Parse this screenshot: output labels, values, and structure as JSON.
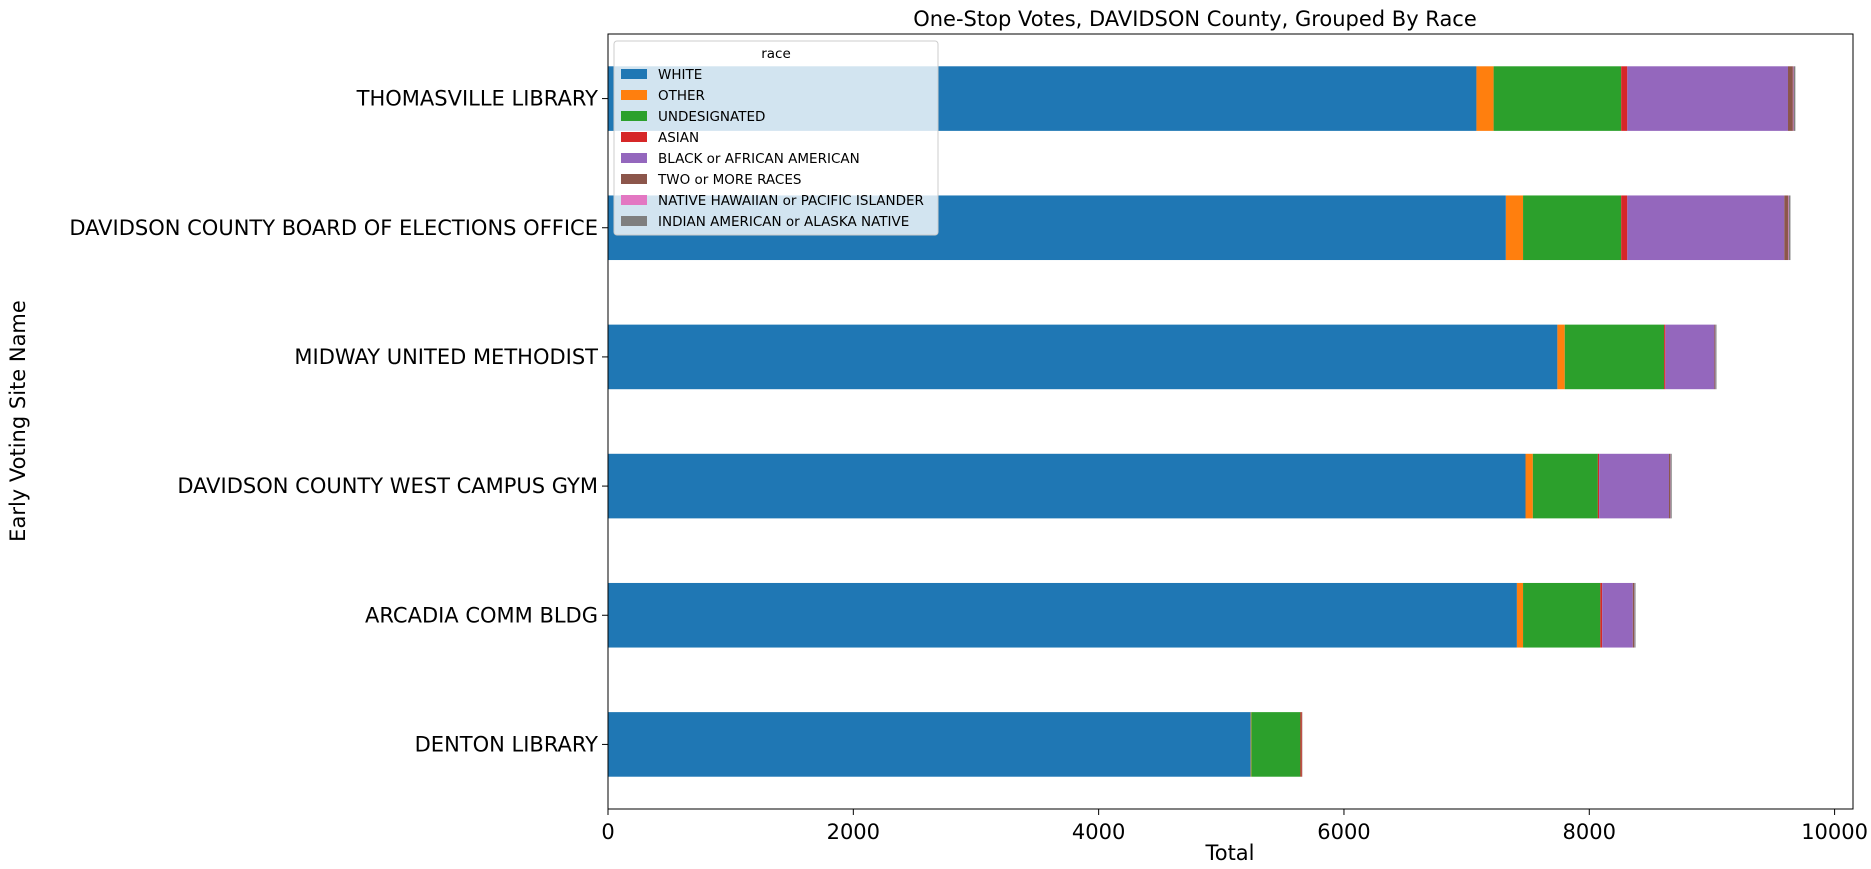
{
  "chart_data": {
    "type": "bar",
    "orientation": "horizontal",
    "stacked": true,
    "title": "One-Stop Votes, DAVIDSON County, Grouped By Race",
    "xlabel": "Total",
    "ylabel": "Early Voting Site Name",
    "xlim": [
      0,
      10150
    ],
    "xticks": [
      0,
      2000,
      4000,
      6000,
      8000,
      10000
    ],
    "categories": [
      "DENTON LIBRARY",
      "ARCADIA COMM BLDG",
      "DAVIDSON COUNTY WEST CAMPUS GYM",
      "MIDWAY UNITED METHODIST",
      "DAVIDSON COUNTY BOARD OF ELECTIONS OFFICE",
      "THOMASVILLE LIBRARY"
    ],
    "legend_title": "race",
    "legend_position": "upper left",
    "grid": false,
    "series": [
      {
        "name": "WHITE",
        "color": "#1f77b4",
        "values": [
          5240,
          7410,
          7480,
          7740,
          7320,
          7080
        ]
      },
      {
        "name": "OTHER",
        "color": "#ff7f0e",
        "values": [
          5,
          50,
          60,
          60,
          140,
          140
        ]
      },
      {
        "name": "UNDESIGNATED",
        "color": "#2ca02c",
        "values": [
          400,
          630,
          530,
          810,
          800,
          1040
        ]
      },
      {
        "name": "ASIAN",
        "color": "#d62728",
        "values": [
          10,
          15,
          10,
          10,
          50,
          50
        ]
      },
      {
        "name": "BLACK or AFRICAN AMERICAN",
        "color": "#9467bd",
        "values": [
          0,
          250,
          570,
          400,
          1280,
          1310
        ]
      },
      {
        "name": "TWO or MORE RACES",
        "color": "#8c564b",
        "values": [
          5,
          10,
          10,
          5,
          30,
          40
        ]
      },
      {
        "name": "NATIVE HAWAIIAN or PACIFIC ISLANDER",
        "color": "#e377c2",
        "values": [
          0,
          2,
          2,
          2,
          5,
          5
        ]
      },
      {
        "name": "INDIAN AMERICAN or ALASKA NATIVE",
        "color": "#7f7f7f",
        "values": [
          0,
          10,
          10,
          10,
          15,
          15
        ]
      }
    ]
  }
}
